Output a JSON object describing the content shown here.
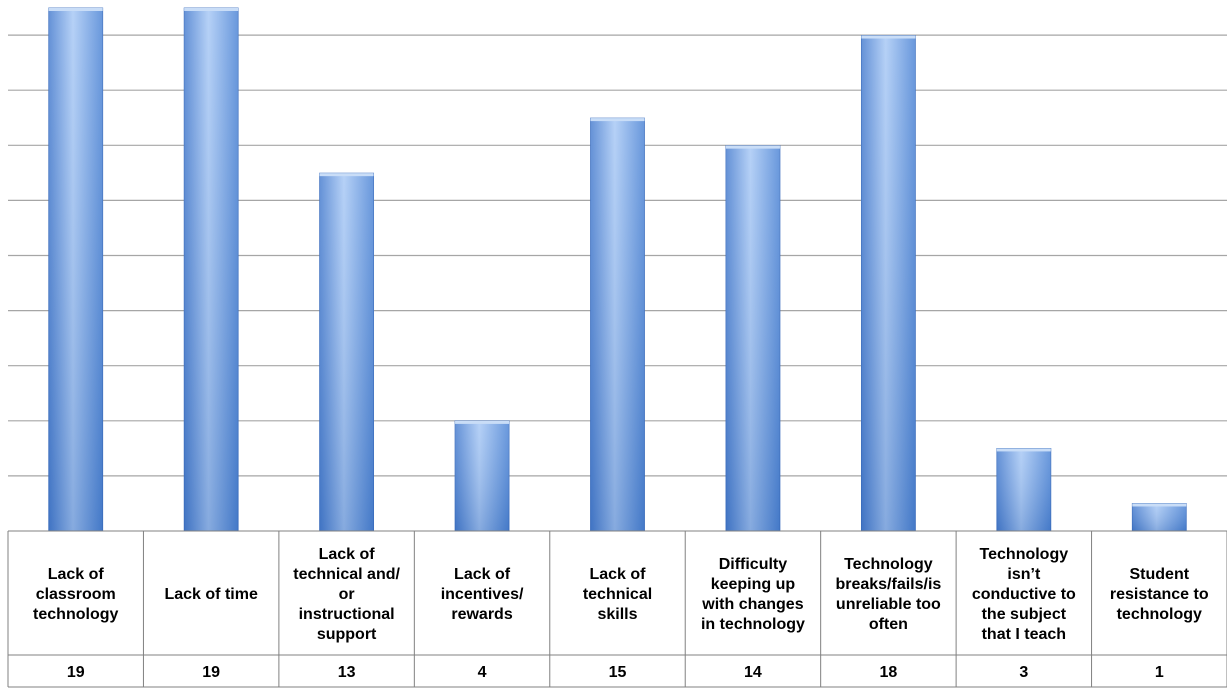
{
  "chart_data": {
    "type": "bar",
    "title": "",
    "xlabel": "",
    "ylabel": "",
    "ylim": [
      0,
      19
    ],
    "grid": true,
    "bar_color": "#5b8fd9",
    "bar_highlight": "#a9c9f5",
    "grid_color": "#a6a6a6",
    "table_border_color": "#808080",
    "categories": [
      [
        "Lack of",
        "classroom",
        "technology"
      ],
      [
        "Lack of time"
      ],
      [
        "Lack of",
        "technical and/",
        "or",
        "instructional",
        "support"
      ],
      [
        "Lack of",
        "incentives/",
        "rewards"
      ],
      [
        "Lack of",
        "technical",
        "skills"
      ],
      [
        "Difficulty",
        "keeping up",
        "with changes",
        "in technology"
      ],
      [
        "Technology",
        "breaks/fails/is",
        "unreliable too",
        "often"
      ],
      [
        "Technology",
        "isn’t",
        "conductive to",
        "the subject",
        "that I teach"
      ],
      [
        "Student",
        "resistance to",
        "technology"
      ]
    ],
    "values": [
      19,
      19,
      13,
      4,
      15,
      14,
      18,
      3,
      1
    ],
    "value_labels": [
      "19",
      "19",
      "13",
      "4",
      "15",
      "14",
      "18",
      "3",
      "1"
    ]
  }
}
